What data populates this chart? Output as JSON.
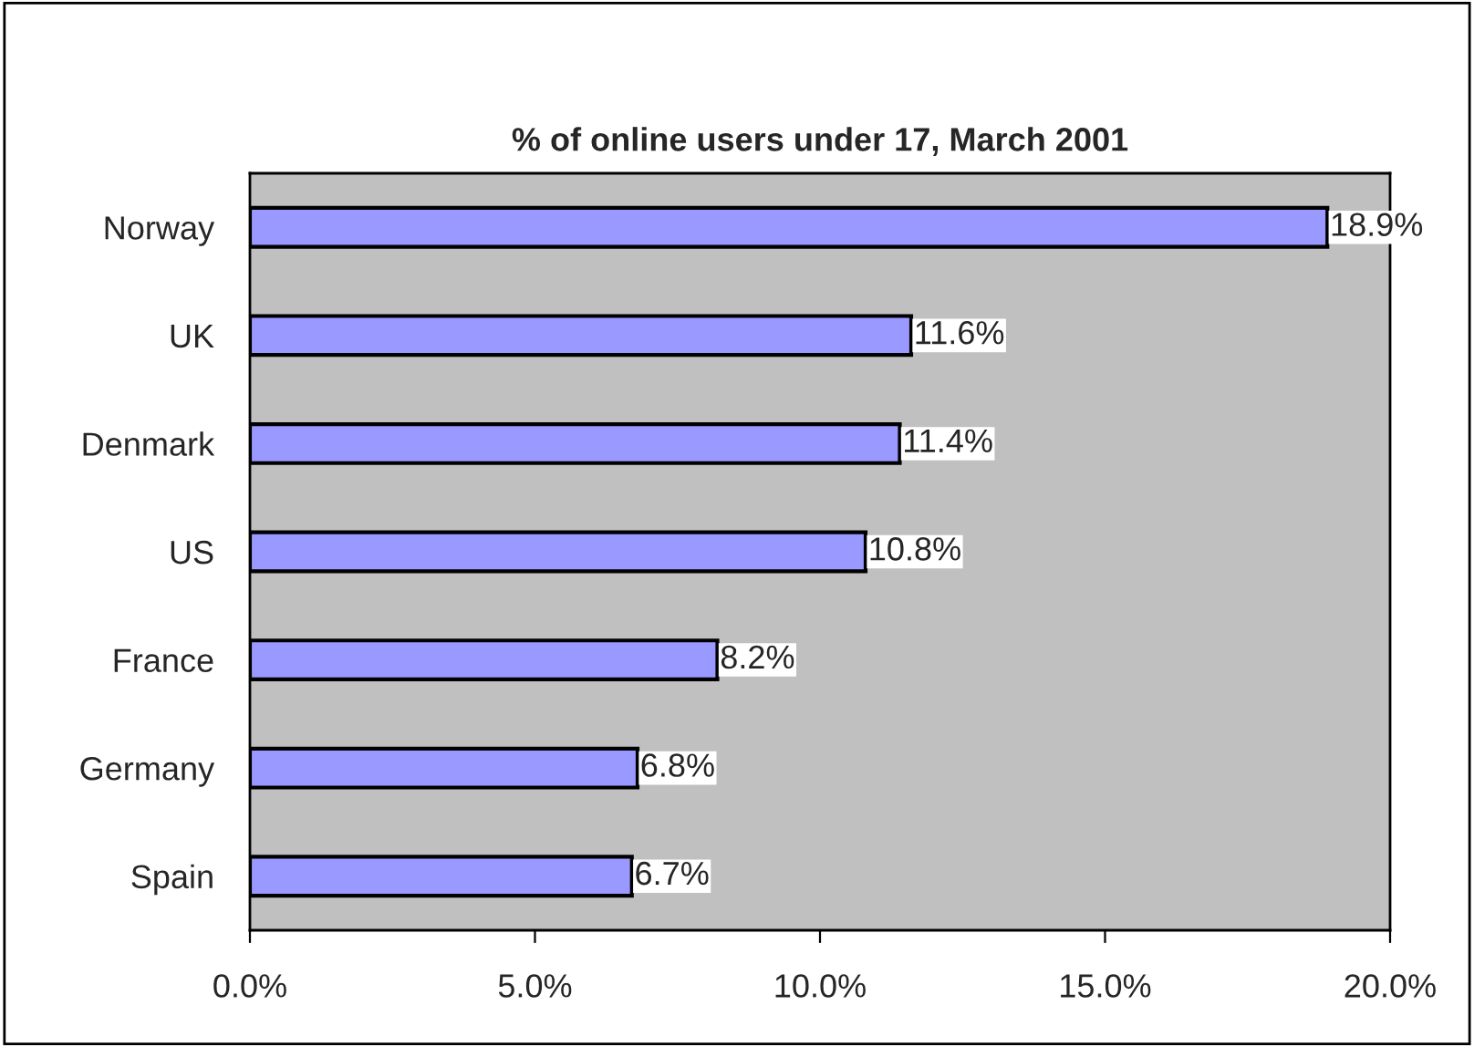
{
  "chart_data": {
    "type": "bar",
    "orientation": "horizontal",
    "title": "% of online users under 17, March 2001",
    "categories": [
      "Norway",
      "UK",
      "Denmark",
      "US",
      "France",
      "Germany",
      "Spain"
    ],
    "values": [
      18.9,
      11.6,
      11.4,
      10.8,
      8.2,
      6.8,
      6.7
    ],
    "value_labels": [
      "18.9%",
      "11.6%",
      "11.4%",
      "10.8%",
      "8.2%",
      "6.8%",
      "6.7%"
    ],
    "color": "#9999ff",
    "xlim": [
      0,
      20
    ],
    "xticks": [
      {
        "value": 0,
        "label": "0.0%"
      },
      {
        "value": 5,
        "label": "5.0%"
      },
      {
        "value": 10,
        "label": "10.0%"
      },
      {
        "value": 15,
        "label": "15.0%"
      },
      {
        "value": 20,
        "label": "20.0%"
      }
    ],
    "grid": false,
    "legend": false
  }
}
